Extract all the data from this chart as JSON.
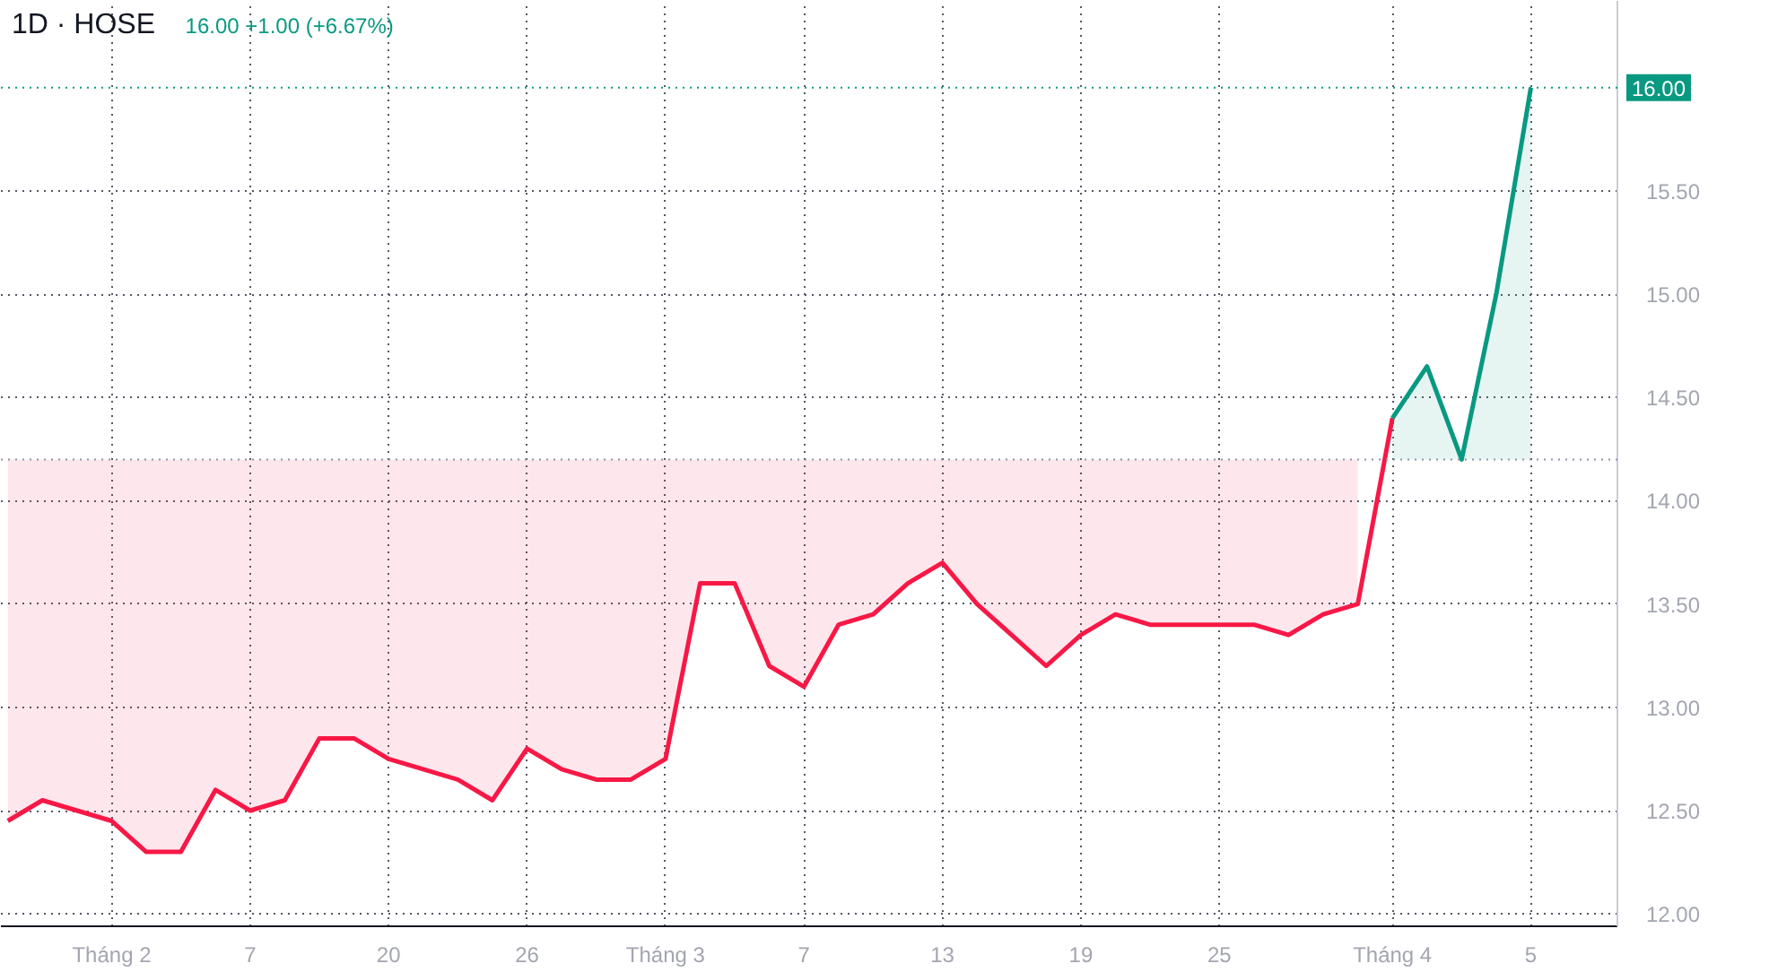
{
  "chart_data": {
    "type": "line",
    "title": "1D · HOSE",
    "subtitle": "16.00 +1.00 (+6.67%)",
    "categories": [
      null,
      null,
      null,
      "Tháng 2",
      null,
      null,
      null,
      "7",
      null,
      null,
      null,
      "20",
      null,
      null,
      null,
      "26",
      null,
      null,
      null,
      "Tháng 3",
      null,
      null,
      null,
      "7",
      null,
      null,
      null,
      "13",
      null,
      null,
      null,
      "19",
      null,
      null,
      null,
      "25",
      null,
      null,
      null,
      null,
      "Tháng 4",
      null,
      null,
      null,
      "5"
    ],
    "series": [
      {
        "color": "#f71846",
        "values": [
          12.45,
          12.55,
          12.5,
          12.45,
          12.3,
          12.3,
          12.6,
          12.5,
          12.55,
          12.85,
          12.85,
          12.75,
          12.7,
          12.65,
          12.55,
          12.8,
          12.7,
          12.65,
          12.65,
          12.75,
          13.6,
          13.6,
          13.2,
          13.1,
          13.4,
          13.45,
          13.6,
          13.7,
          13.5,
          13.35,
          13.2,
          13.35,
          13.45,
          13.4,
          13.4,
          13.4,
          13.4,
          13.35,
          13.45,
          13.5,
          14.4,
          null,
          null,
          null,
          null
        ],
        "lower": [
          12.45,
          12.55,
          12.5,
          12.45,
          12.3,
          12.3,
          12.6,
          12.5,
          12.55,
          12.85,
          12.85,
          12.75,
          12.7,
          12.65,
          12.55,
          12.8,
          12.7,
          12.65,
          12.65,
          12.75,
          13.6,
          13.6,
          13.2,
          13.1,
          13.4,
          13.45,
          13.6,
          13.7,
          13.5,
          13.35,
          13.2,
          13.35,
          13.45,
          13.4,
          13.4,
          13.4,
          13.4,
          13.35,
          13.45,
          13.5,
          null,
          null,
          null,
          null,
          null
        ],
        "upper": [
          14.2,
          14.2,
          14.2,
          14.2,
          14.2,
          14.2,
          14.2,
          14.2,
          14.2,
          14.2,
          14.2,
          14.2,
          14.2,
          14.2,
          14.2,
          14.2,
          14.2,
          14.2,
          14.2,
          14.2,
          14.2,
          14.2,
          14.2,
          14.2,
          14.2,
          14.2,
          14.2,
          14.2,
          14.2,
          14.2,
          14.2,
          14.2,
          14.2,
          14.2,
          14.2,
          14.2,
          14.2,
          14.2,
          14.2,
          14.2,
          null,
          null,
          null,
          null,
          null
        ]
      },
      {
        "color": "#089981",
        "values": [
          null,
          null,
          null,
          null,
          null,
          null,
          null,
          null,
          null,
          null,
          null,
          null,
          null,
          null,
          null,
          null,
          null,
          null,
          null,
          null,
          null,
          null,
          null,
          null,
          null,
          null,
          null,
          null,
          null,
          null,
          null,
          null,
          null,
          null,
          null,
          null,
          null,
          null,
          null,
          null,
          14.4,
          14.65,
          14.2,
          15.0,
          16.0
        ],
        "lower": [
          null,
          null,
          null,
          null,
          null,
          null,
          null,
          null,
          null,
          null,
          null,
          null,
          null,
          null,
          null,
          null,
          null,
          null,
          null,
          null,
          null,
          null,
          null,
          null,
          null,
          null,
          null,
          null,
          null,
          null,
          null,
          null,
          null,
          null,
          null,
          null,
          null,
          null,
          null,
          null,
          14.2,
          14.2,
          14.2,
          14.2,
          14.2
        ],
        "upper": [
          null,
          null,
          null,
          null,
          null,
          null,
          null,
          null,
          null,
          null,
          null,
          null,
          null,
          null,
          null,
          null,
          null,
          null,
          null,
          null,
          null,
          null,
          null,
          null,
          null,
          null,
          null,
          null,
          null,
          null,
          null,
          null,
          null,
          null,
          null,
          null,
          null,
          null,
          null,
          null,
          14.4,
          14.65,
          14.2,
          15.0,
          16.0
        ]
      }
    ],
    "ylim": [
      11.94,
      16.42
    ],
    "yticks": [
      {
        "value": 12,
        "label": "12.00"
      },
      {
        "value": 12.5,
        "label": "12.50"
      },
      {
        "value": 13,
        "label": "13.00"
      },
      {
        "value": 13.5,
        "label": "13.50"
      },
      {
        "value": 14,
        "label": "14.00"
      },
      {
        "value": 14.5,
        "label": "14.50"
      },
      {
        "value": 15,
        "label": "15.00"
      },
      {
        "value": 15.5,
        "label": "15.50"
      }
    ],
    "ref_lines": [
      {
        "axis": "y",
        "value": 14.2,
        "color": "#8b93a5",
        "line_style": "dotted"
      },
      {
        "axis": "y",
        "value": 16.0,
        "label": "16.00",
        "color": "#089981",
        "line_style": "dotted"
      }
    ],
    "grid": true
  }
}
